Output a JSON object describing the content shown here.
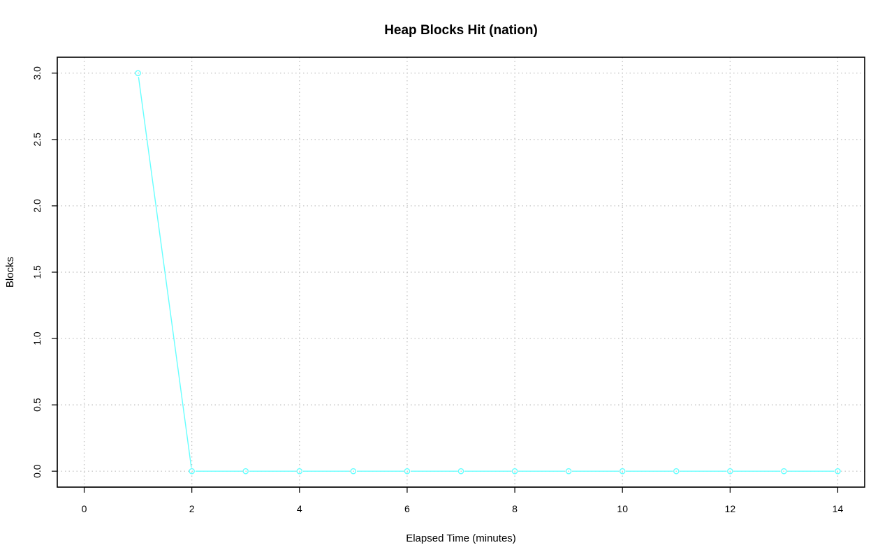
{
  "chart_data": {
    "type": "line",
    "title": "Heap Blocks Hit (nation)",
    "xlabel": "Elapsed Time (minutes)",
    "ylabel": "Blocks",
    "xlim": [
      -0.5,
      14.5
    ],
    "ylim": [
      -0.12,
      3.12
    ],
    "x_ticks": [
      0,
      2,
      4,
      6,
      8,
      10,
      12,
      14
    ],
    "y_ticks": [
      0.0,
      0.5,
      1.0,
      1.5,
      2.0,
      2.5,
      3.0
    ],
    "x_tick_labels": [
      "0",
      "2",
      "4",
      "6",
      "8",
      "10",
      "12",
      "14"
    ],
    "y_tick_labels": [
      "0.0",
      "0.5",
      "1.0",
      "1.5",
      "2.0",
      "2.5",
      "3.0"
    ],
    "grid": true,
    "legend": "none",
    "series": [
      {
        "color": "#66ffff",
        "marker": "open-circle",
        "x": [
          1,
          2,
          3,
          4,
          5,
          6,
          7,
          8,
          9,
          10,
          11,
          12,
          13,
          14
        ],
        "y": [
          3,
          0,
          0,
          0,
          0,
          0,
          0,
          0,
          0,
          0,
          0,
          0,
          0,
          0
        ]
      }
    ]
  }
}
